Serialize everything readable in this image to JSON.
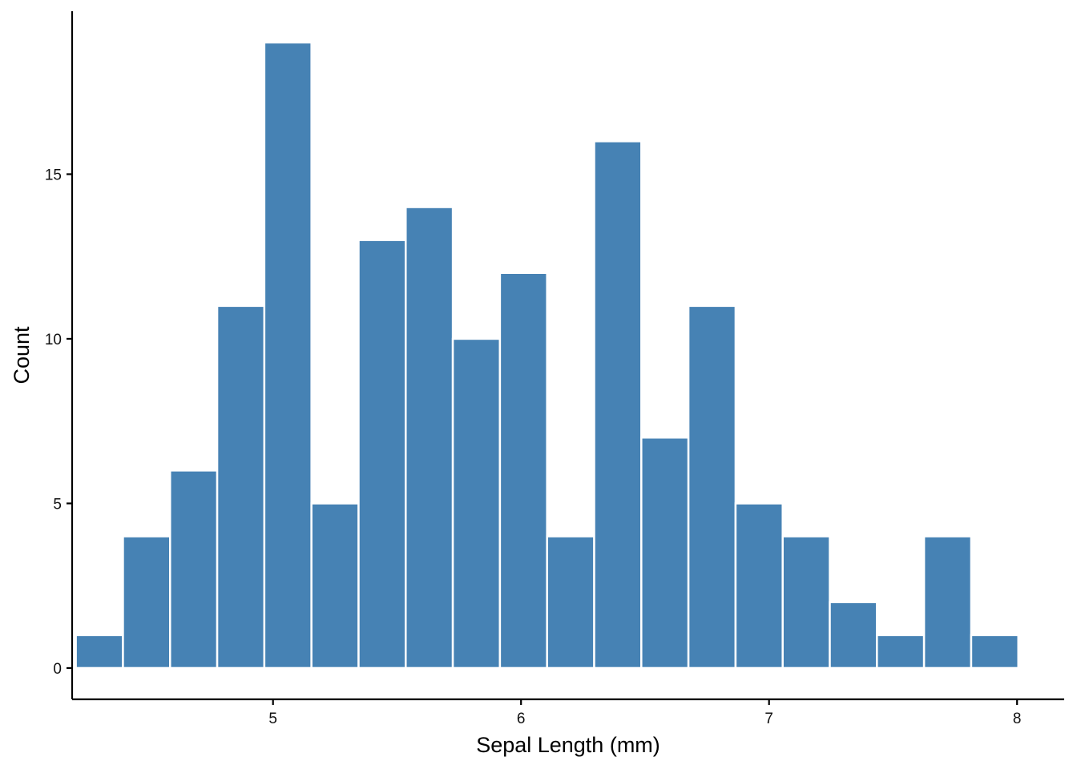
{
  "chart_data": {
    "type": "bar",
    "subtype": "histogram",
    "title": "",
    "xlabel": "Sepal Length (mm)",
    "ylabel": "Count",
    "x_ticks": [
      5,
      6,
      7,
      8
    ],
    "y_ticks": [
      0,
      5,
      10,
      15
    ],
    "xlim": [
      4.19,
      8.19
    ],
    "ylim": [
      -0.95,
      19.95
    ],
    "bin_width": 0.19,
    "bins": [
      {
        "center": 4.3,
        "count": 1
      },
      {
        "center": 4.49,
        "count": 4
      },
      {
        "center": 4.68,
        "count": 6
      },
      {
        "center": 4.87,
        "count": 11
      },
      {
        "center": 5.06,
        "count": 19
      },
      {
        "center": 5.25,
        "count": 5
      },
      {
        "center": 5.44,
        "count": 13
      },
      {
        "center": 5.63,
        "count": 14
      },
      {
        "center": 5.82,
        "count": 10
      },
      {
        "center": 6.01,
        "count": 12
      },
      {
        "center": 6.2,
        "count": 4
      },
      {
        "center": 6.39,
        "count": 16
      },
      {
        "center": 6.58,
        "count": 7
      },
      {
        "center": 6.77,
        "count": 11
      },
      {
        "center": 6.96,
        "count": 5
      },
      {
        "center": 7.15,
        "count": 4
      },
      {
        "center": 7.34,
        "count": 2
      },
      {
        "center": 7.53,
        "count": 1
      },
      {
        "center": 7.72,
        "count": 4
      },
      {
        "center": 7.91,
        "count": 1
      }
    ],
    "grid": false,
    "legend": "none",
    "colors": {
      "bar_fill": "#4682b4",
      "bar_outline": "#ffffff",
      "axis": "#000000"
    }
  }
}
